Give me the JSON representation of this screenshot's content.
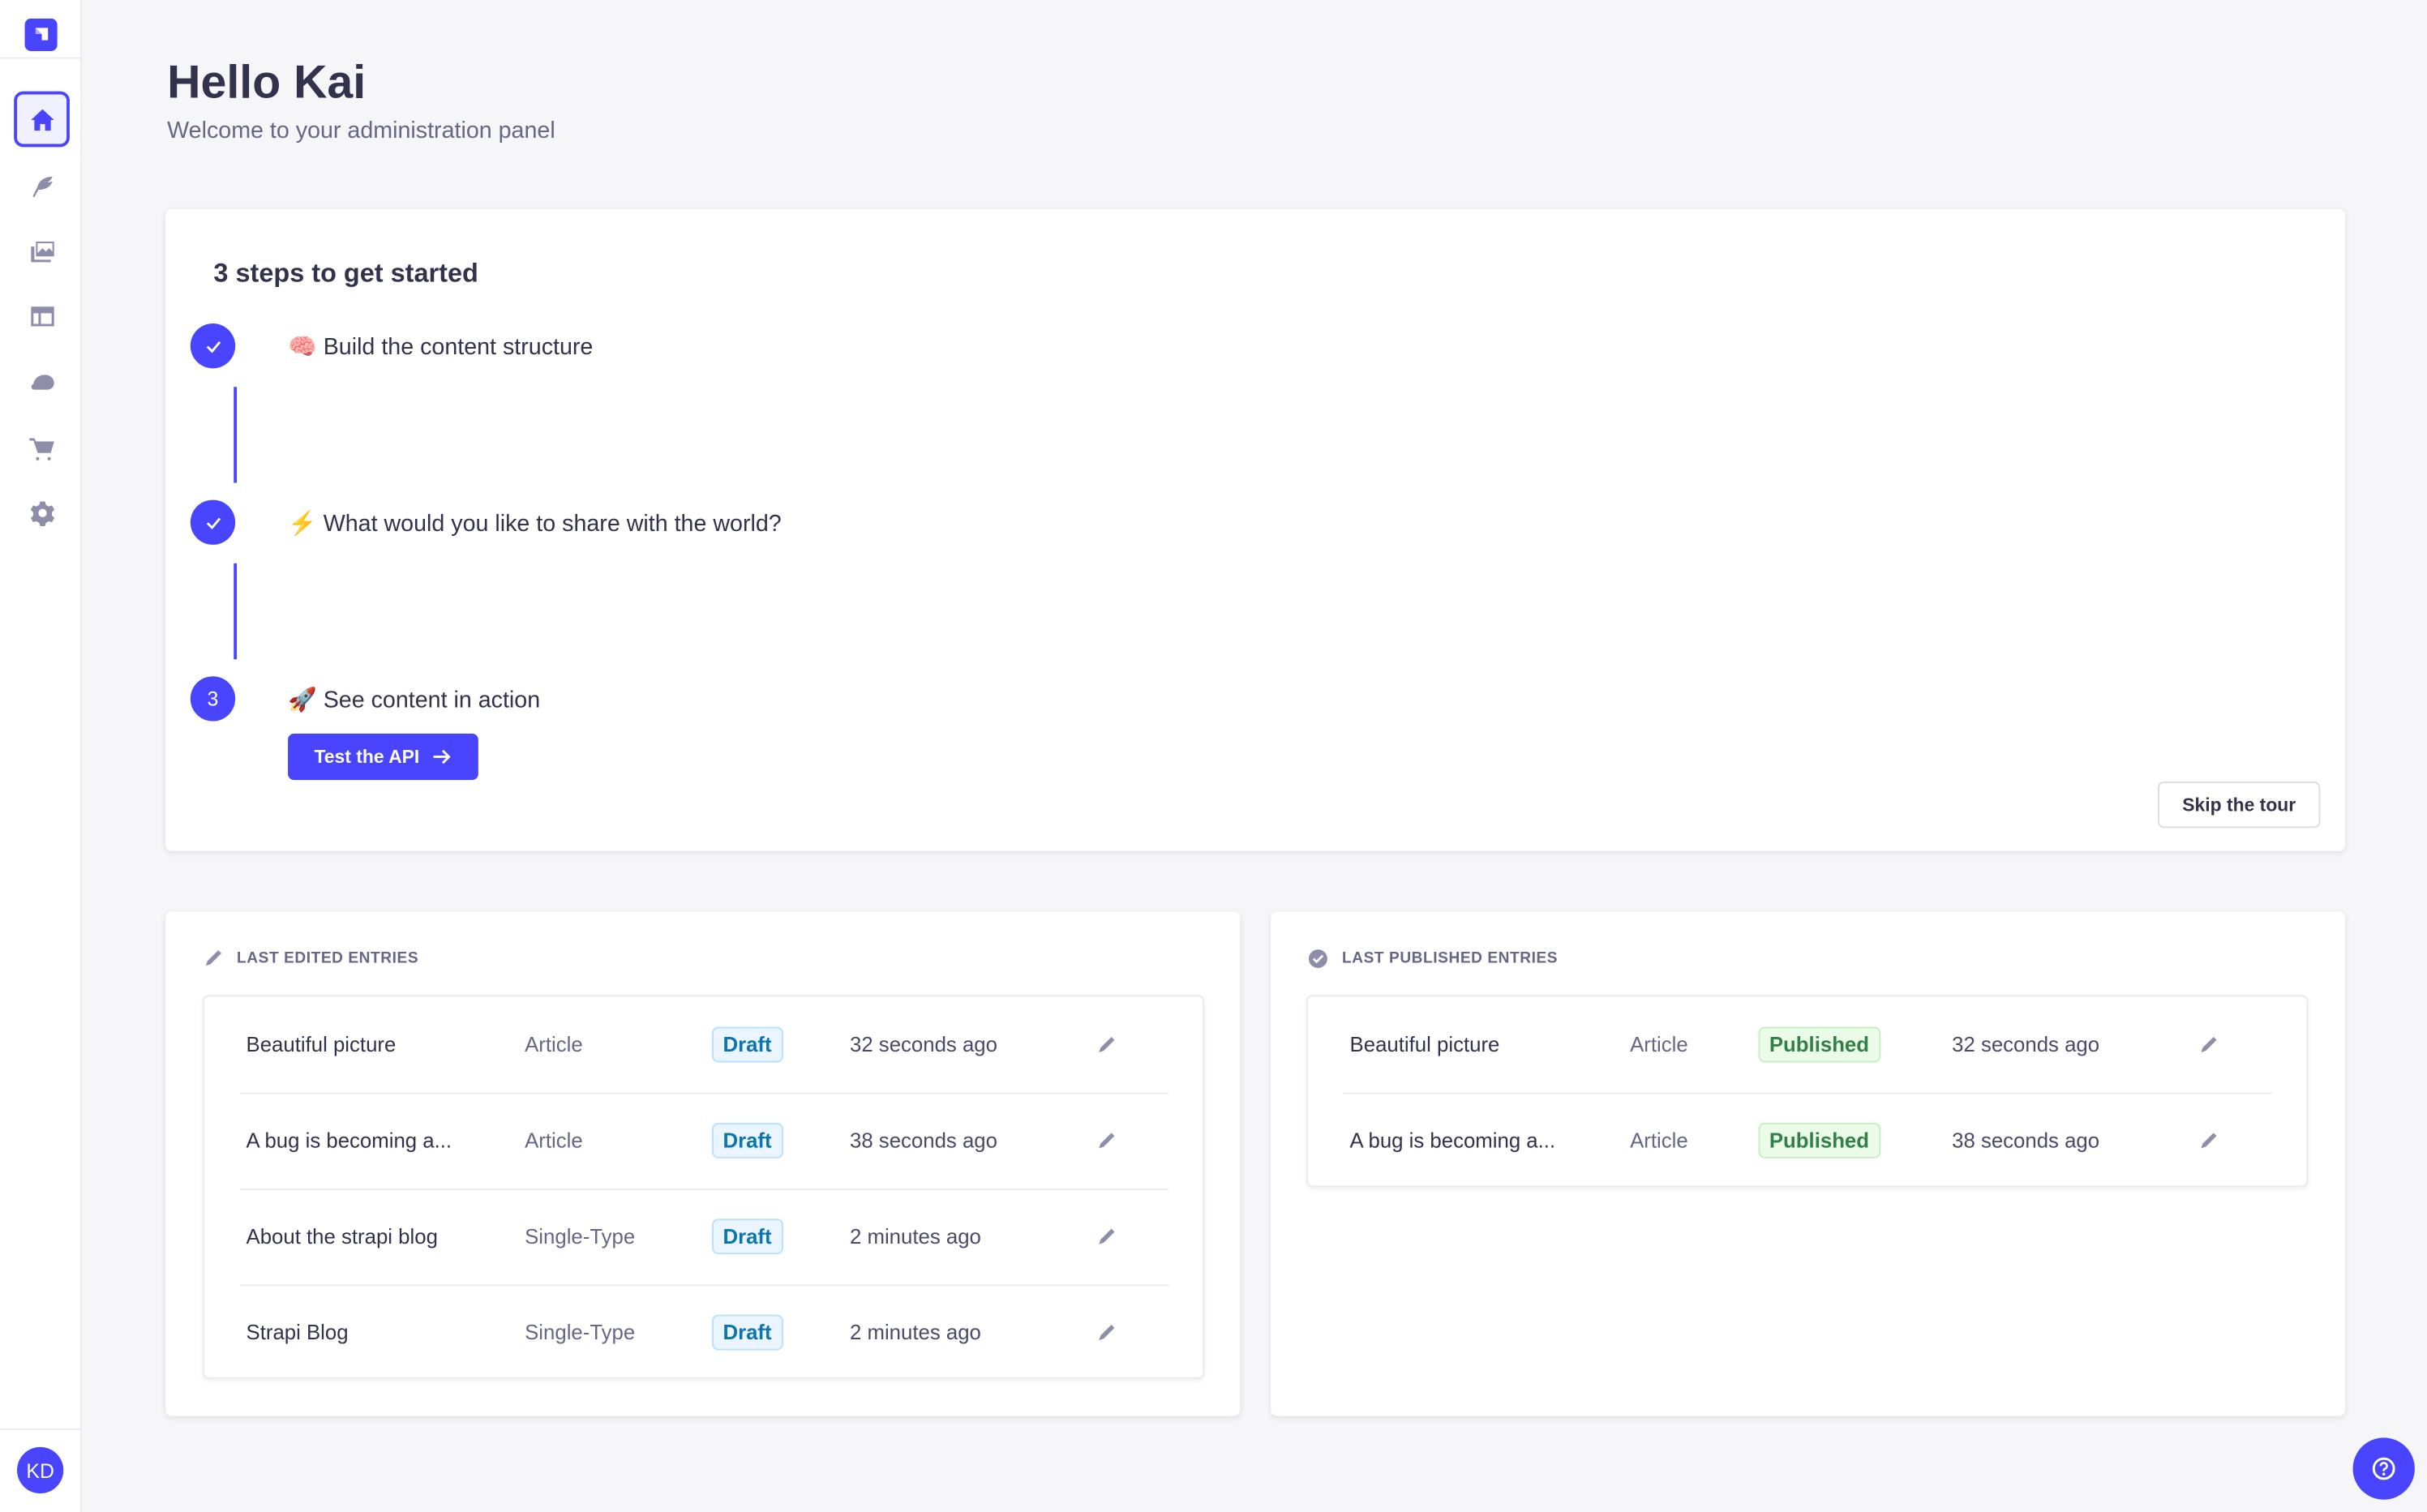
{
  "sidebar": {
    "logo": "strapi-logo",
    "items": [
      {
        "name": "home",
        "icon": "home-icon",
        "active": true
      },
      {
        "name": "content-manager",
        "icon": "feather-icon"
      },
      {
        "name": "media-library",
        "icon": "images-icon"
      },
      {
        "name": "content-type-builder",
        "icon": "layout-icon"
      },
      {
        "name": "cloud",
        "icon": "cloud-icon"
      },
      {
        "name": "marketplace",
        "icon": "cart-icon"
      },
      {
        "name": "settings",
        "icon": "gear-icon"
      }
    ],
    "avatar_initials": "KD"
  },
  "header": {
    "title": "Hello Kai",
    "subtitle": "Welcome to your administration panel"
  },
  "guided_tour": {
    "title": "3 steps to get started",
    "steps": [
      {
        "emoji": "🧠",
        "label": "Build the content structure",
        "status": "done"
      },
      {
        "emoji": "⚡",
        "label": "What would you like to share with the world?",
        "status": "done"
      },
      {
        "emoji": "🚀",
        "label": "See content in action",
        "status": "current",
        "number": "3"
      }
    ],
    "cta_label": "Test the API",
    "skip_label": "Skip the tour"
  },
  "last_edited": {
    "title": "LAST EDITED ENTRIES",
    "rows": [
      {
        "name": "Beautiful picture",
        "type": "Article",
        "status": "Draft",
        "time": "32 seconds ago"
      },
      {
        "name": "A bug is becoming a...",
        "type": "Article",
        "status": "Draft",
        "time": "38 seconds ago"
      },
      {
        "name": "About the strapi blog",
        "type": "Single-Type",
        "status": "Draft",
        "time": "2 minutes ago"
      },
      {
        "name": "Strapi Blog",
        "type": "Single-Type",
        "status": "Draft",
        "time": "2 minutes ago"
      }
    ]
  },
  "last_published": {
    "title": "LAST PUBLISHED ENTRIES",
    "rows": [
      {
        "name": "Beautiful picture",
        "type": "Article",
        "status": "Published",
        "time": "32 seconds ago"
      },
      {
        "name": "A bug is becoming a...",
        "type": "Article",
        "status": "Published",
        "time": "38 seconds ago"
      }
    ]
  },
  "colors": {
    "primary": "#4945ff",
    "draft": "#0c75af",
    "published": "#328048",
    "background": "#f6f6f9"
  }
}
